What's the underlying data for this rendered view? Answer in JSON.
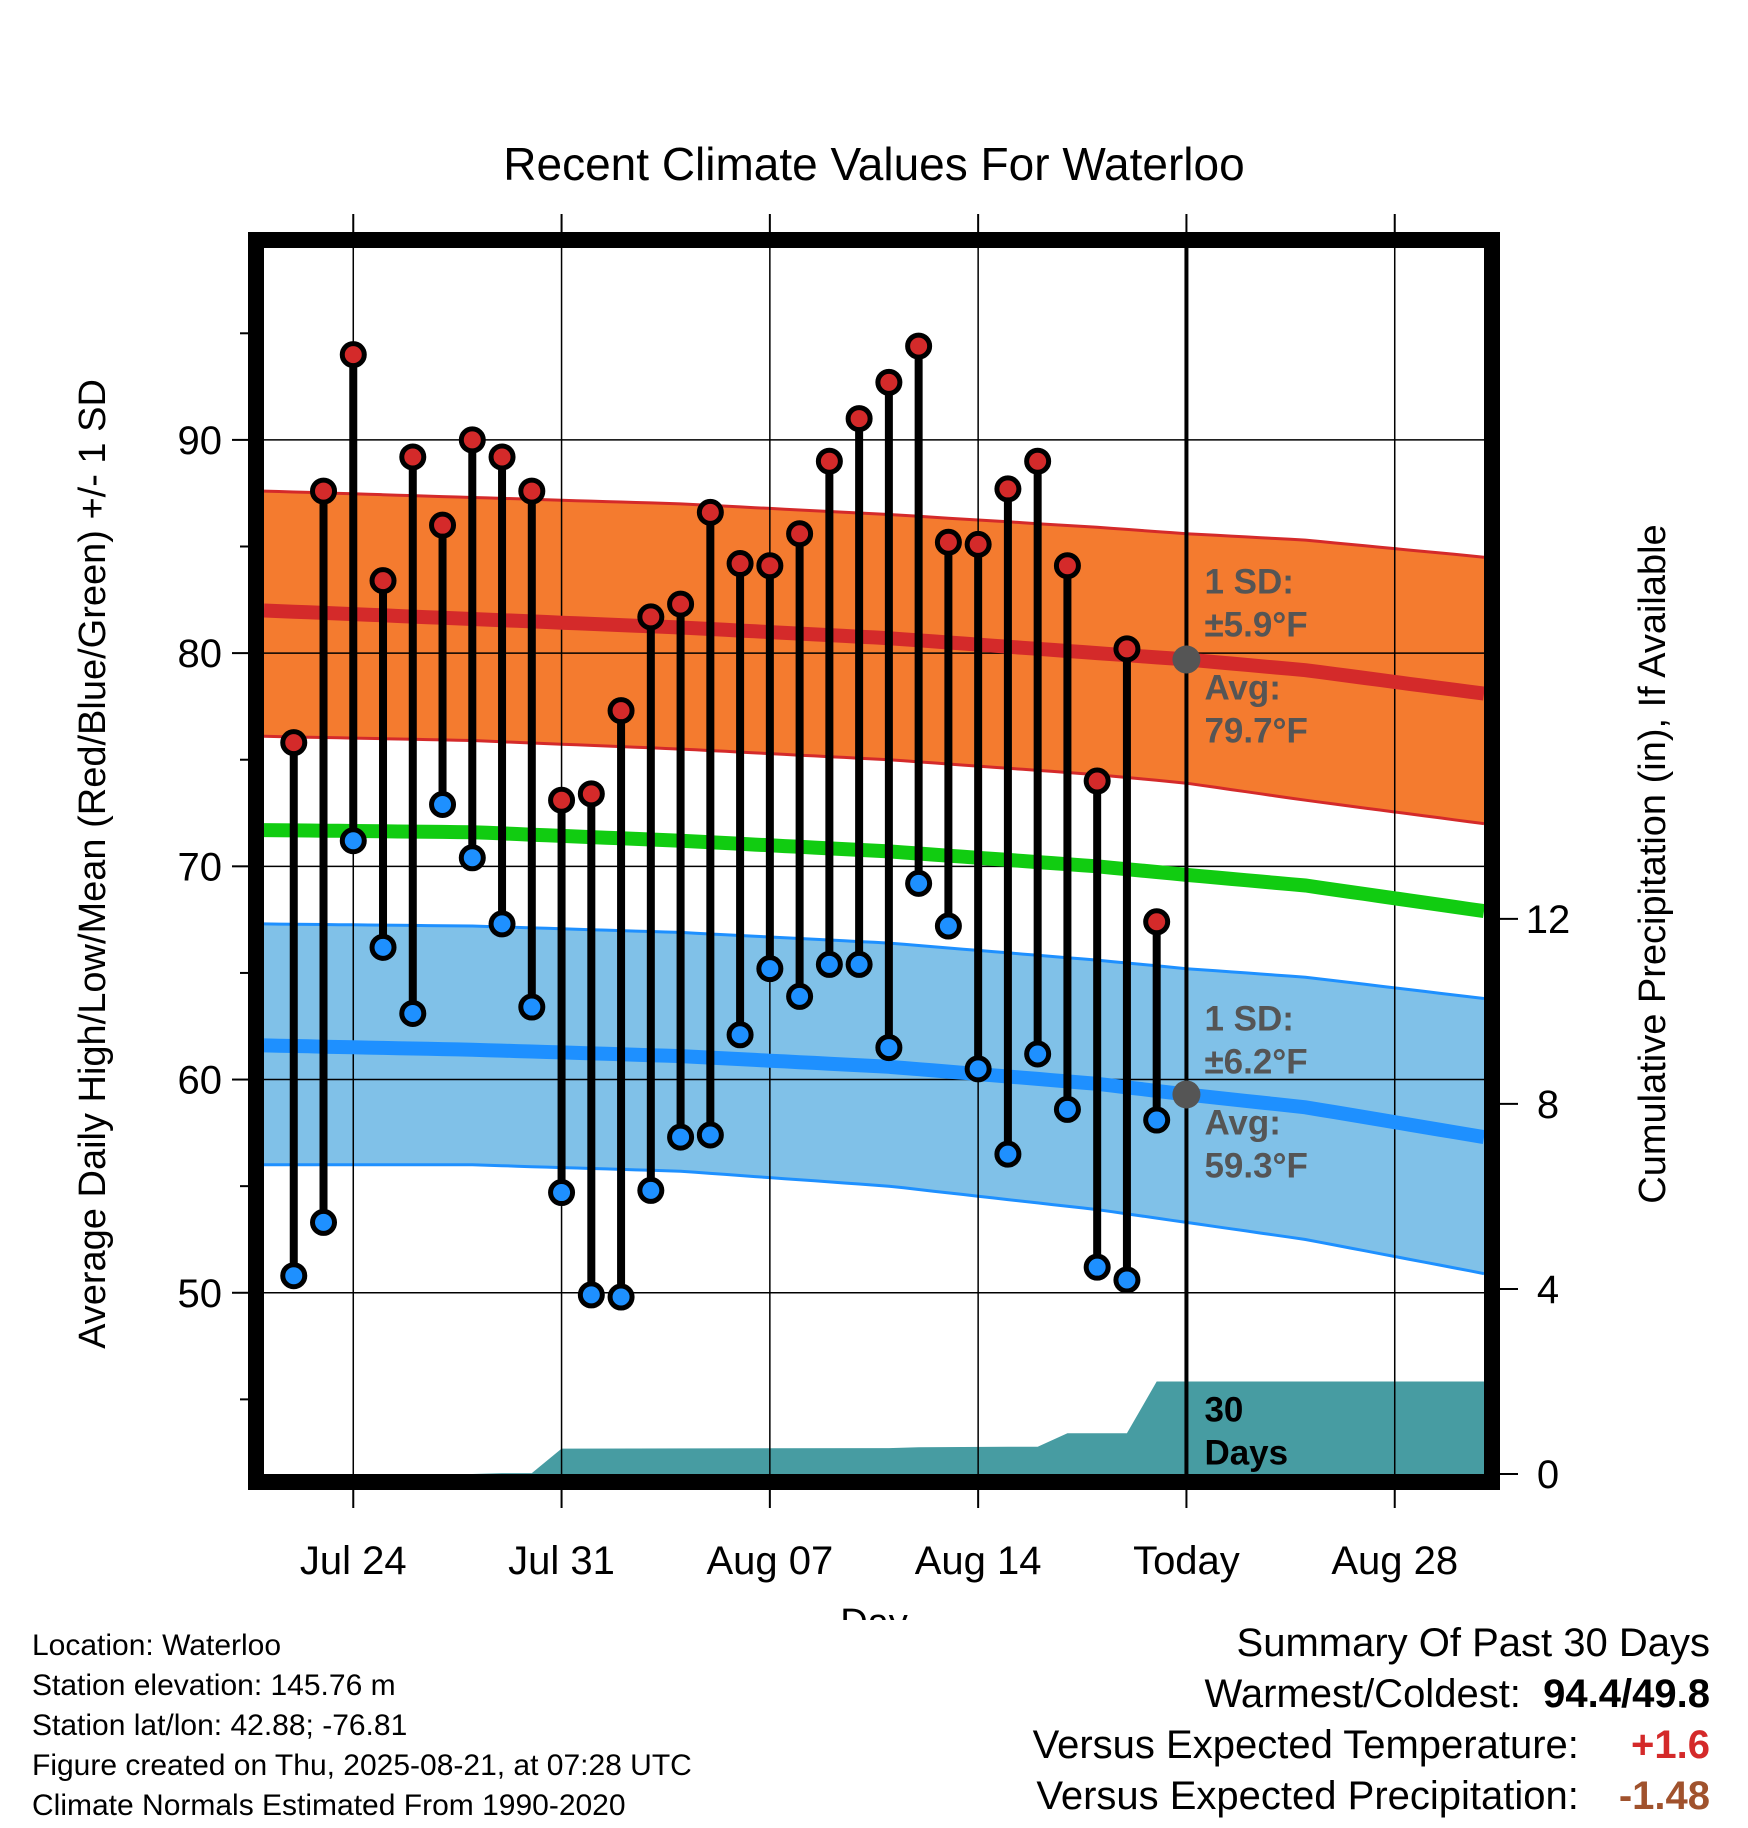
{
  "chart_data": {
    "type": "line",
    "title": "Recent Climate Values For Waterloo",
    "xlabel": "Day",
    "ylabel_left": "Average Daily High/Low/Mean (Red/Blue/Green) +/- 1 SD",
    "ylabel_right": "Cumulative Precipitation (in), If Available",
    "x_ticks": [
      "Jul 24",
      "Jul 31",
      "Aug 07",
      "Aug 14",
      "Today",
      "Aug 28"
    ],
    "y_ticks_left": [
      "50",
      "60",
      "70",
      "80",
      "90"
    ],
    "y_ticks_right": [
      "0",
      "4",
      "8",
      "12"
    ],
    "ylim_left": [
      41.5,
      99
    ],
    "ylim_right": [
      0,
      26.5
    ],
    "xlim": [
      "Jul 21",
      "Aug 31"
    ],
    "grid": true,
    "days": [
      "Jul 22",
      "Jul 23",
      "Jul 24",
      "Jul 25",
      "Jul 26",
      "Jul 27",
      "Jul 28",
      "Jul 29",
      "Jul 30",
      "Jul 31",
      "Aug 01",
      "Aug 02",
      "Aug 03",
      "Aug 04",
      "Aug 05",
      "Aug 06",
      "Aug 07",
      "Aug 08",
      "Aug 09",
      "Aug 10",
      "Aug 11",
      "Aug 12",
      "Aug 13",
      "Aug 14",
      "Aug 15",
      "Aug 16",
      "Aug 17",
      "Aug 18",
      "Aug 19",
      "Aug 20"
    ],
    "daily_high": [
      75.8,
      87.6,
      94.0,
      83.4,
      89.2,
      86.0,
      90.0,
      89.2,
      87.6,
      73.1,
      73.4,
      77.3,
      81.7,
      82.3,
      86.6,
      84.2,
      84.1,
      85.6,
      89.0,
      91.0,
      92.7,
      94.4,
      85.2,
      85.1,
      87.7,
      89.0,
      84.1,
      74.0,
      80.2,
      67.4
    ],
    "daily_low": [
      50.8,
      53.3,
      71.2,
      66.2,
      63.1,
      72.9,
      70.4,
      67.3,
      63.4,
      54.7,
      49.9,
      49.8,
      54.8,
      57.3,
      57.4,
      62.1,
      65.2,
      63.9,
      65.4,
      65.4,
      61.5,
      69.2,
      67.2,
      60.5,
      56.5,
      61.2,
      58.6,
      51.2,
      50.6,
      58.1
    ],
    "normal_days": [
      "Jul 21",
      "Jul 28",
      "Aug 04",
      "Aug 11",
      "Aug 18",
      "Aug 21",
      "Aug 25",
      "Aug 31"
    ],
    "normal_high": [
      82.0,
      81.6,
      81.2,
      80.7,
      80.0,
      79.7,
      79.2,
      78.1
    ],
    "normal_high_sd_upper": [
      87.6,
      87.3,
      87.0,
      86.5,
      85.9,
      85.6,
      85.3,
      84.5
    ],
    "normal_high_sd_lower": [
      76.1,
      75.9,
      75.5,
      75.0,
      74.3,
      73.9,
      73.1,
      72.0
    ],
    "normal_mean": [
      71.7,
      71.6,
      71.2,
      70.7,
      70.0,
      69.6,
      69.1,
      67.9
    ],
    "normal_low": [
      61.6,
      61.4,
      61.1,
      60.6,
      59.8,
      59.3,
      58.7,
      57.3
    ],
    "normal_low_sd_upper": [
      67.3,
      67.2,
      66.9,
      66.4,
      65.6,
      65.2,
      64.8,
      63.8
    ],
    "normal_low_sd_lower": [
      56.0,
      56.0,
      55.7,
      55.0,
      53.9,
      53.3,
      52.5,
      50.9
    ],
    "precip_days": [
      "Jul 21",
      "Jul 28",
      "Jul 29",
      "Jul 30",
      "Jul 31",
      "Aug 11",
      "Aug 12",
      "Aug 15",
      "Aug 16",
      "Aug 17",
      "Aug 19",
      "Aug 20",
      "Aug 21",
      "Aug 31"
    ],
    "cumulative_precip": [
      0.0,
      0.0,
      0.02,
      0.02,
      0.55,
      0.56,
      0.58,
      0.59,
      0.59,
      0.88,
      0.88,
      2.0,
      2.0,
      2.0
    ],
    "today": "Aug 21",
    "today_normal_high": 79.7,
    "today_normal_low": 59.3,
    "annotations": {
      "high_sd": [
        "1 SD:",
        "±5.9°F"
      ],
      "high_avg": [
        "Avg:",
        "79.7°F"
      ],
      "low_sd": [
        "1 SD:",
        "±6.2°F"
      ],
      "low_avg": [
        "Avg:",
        "59.3°F"
      ],
      "precip_window": [
        "30",
        "Days"
      ]
    },
    "colors": {
      "high_band": "#f47b2f",
      "high_line": "#d42a2a",
      "high_marker": "#d42a2a",
      "mean_line": "#11cc11",
      "low_band": "#80c1e8",
      "low_line": "#1e90ff",
      "low_marker": "#1e90ff",
      "precip_fill": "#479ca2",
      "today_dot": "#555555"
    }
  },
  "footer": {
    "left": [
      "Location: Waterloo",
      "Station elevation: 145.76 m",
      "Station lat/lon: 42.88; -76.81",
      "Figure created on Thu, 2025-08-21, at 07:28 UTC",
      "Climate Normals Estimated From 1990-2020"
    ],
    "summary_title": "Summary Of Past 30 Days",
    "warmest_coldest_label": "Warmest/Coldest:",
    "warmest": "94.4",
    "coldest_sep": "/",
    "coldest": "49.8",
    "vs_temp_label": "Versus Expected Temperature:",
    "vs_temp_value": "+1.6",
    "vs_temp_color": "#d42a2a",
    "vs_precip_label": "Versus Expected Precipitation:",
    "vs_precip_value": "-1.48",
    "vs_precip_color": "#a0522d"
  }
}
